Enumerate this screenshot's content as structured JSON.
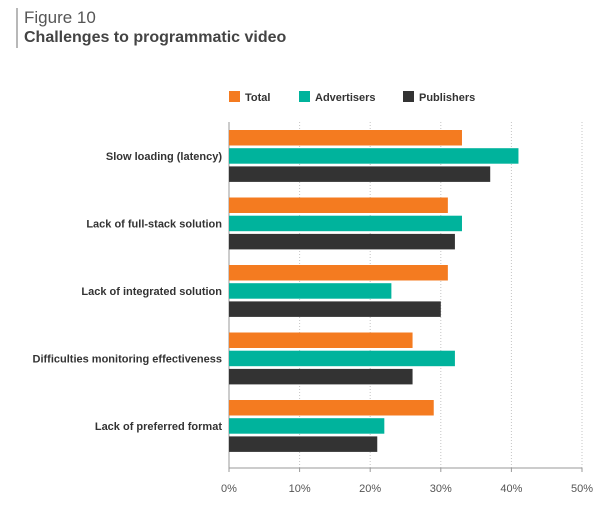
{
  "figure": {
    "label": "Figure 10",
    "title": "Challenges to programmatic video"
  },
  "chart_data": {
    "type": "bar",
    "orientation": "horizontal",
    "categories": [
      "Slow loading (latency)",
      "Lack of full-stack solution",
      "Lack of integrated solution",
      "Difficulties monitoring effectiveness",
      "Lack of preferred format"
    ],
    "series": [
      {
        "name": "Total",
        "color": "#f47b20",
        "values": [
          33,
          31,
          31,
          26,
          29
        ]
      },
      {
        "name": "Advertisers",
        "color": "#00b39c",
        "values": [
          41,
          33,
          23,
          32,
          22
        ]
      },
      {
        "name": "Publishers",
        "color": "#333333",
        "values": [
          37,
          32,
          30,
          26,
          21
        ]
      }
    ],
    "xlim": [
      0,
      50
    ],
    "xticks": [
      0,
      10,
      20,
      30,
      40,
      50
    ],
    "xtick_labels": [
      "0%",
      "10%",
      "20%",
      "30%",
      "40%",
      "50%"
    ],
    "xlabel": "",
    "ylabel": "",
    "grid": "vertical",
    "legend_position": "top"
  }
}
